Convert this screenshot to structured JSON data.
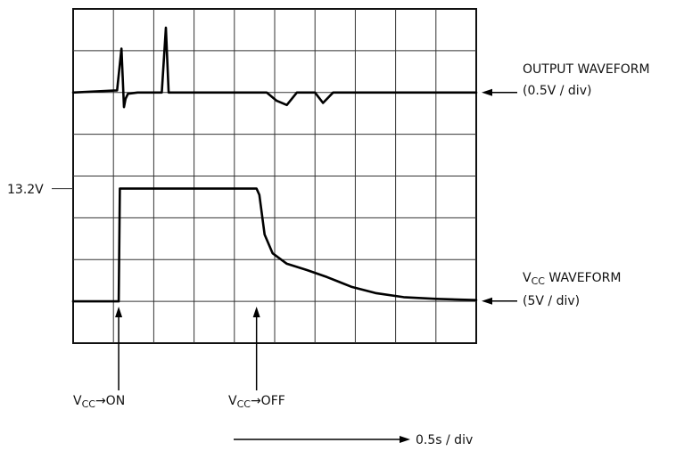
{
  "chart_data": {
    "type": "line",
    "title": "",
    "grid": {
      "columns": 10,
      "rows": 8,
      "shown": true
    },
    "x_scale_label": "0.5s / div",
    "series": [
      {
        "name": "OUTPUT WAVEFORM",
        "scale": "(0.5V / div)",
        "x_div": [
          0,
          1.09,
          1.2,
          1.26,
          1.3,
          1.36,
          1.6,
          2.2,
          2.3,
          2.37,
          2.43,
          2.53,
          4.8,
          5.05,
          5.3,
          5.55,
          6.0,
          6.2,
          6.45,
          6.7,
          10
        ],
        "y_div": [
          6,
          6.05,
          7.05,
          5.65,
          5.85,
          5.97,
          6.0,
          6.0,
          7.55,
          6.0,
          6.0,
          6.0,
          6.0,
          5.8,
          5.7,
          6.0,
          6.0,
          5.75,
          6.0,
          6.0,
          6.0
        ]
      },
      {
        "name": "VCC WAVEFORM",
        "scale": "(5V / div)",
        "x_div": [
          0,
          1.13,
          1.16,
          1.22,
          4.55,
          4.62,
          4.75,
          4.95,
          5.3,
          5.8,
          6.3,
          6.9,
          7.5,
          8.2,
          9.0,
          10
        ],
        "y_div": [
          1.0,
          1.0,
          3.7,
          3.7,
          3.7,
          3.55,
          2.6,
          2.15,
          1.9,
          1.75,
          1.58,
          1.35,
          1.2,
          1.1,
          1.06,
          1.03
        ]
      }
    ],
    "annotations": [
      {
        "id": "vcc_level",
        "text": "13.2V"
      },
      {
        "id": "vcc_on",
        "text_main": "V",
        "text_sub": "CC",
        "text_rest": "→ON",
        "x_div": 1.13
      },
      {
        "id": "vcc_off",
        "text_main": "V",
        "text_sub": "CC",
        "text_rest": "→OFF",
        "x_div": 4.55
      }
    ],
    "labels": {
      "output_name": "OUTPUT WAVEFORM",
      "output_scale": "(0.5V / div)",
      "vcc_main": "V",
      "vcc_sub": "CC",
      "vcc_rest": " WAVEFORM",
      "vcc_scale": "(5V / div)",
      "level": "13.2V",
      "time_scale": "0.5s / div"
    }
  }
}
